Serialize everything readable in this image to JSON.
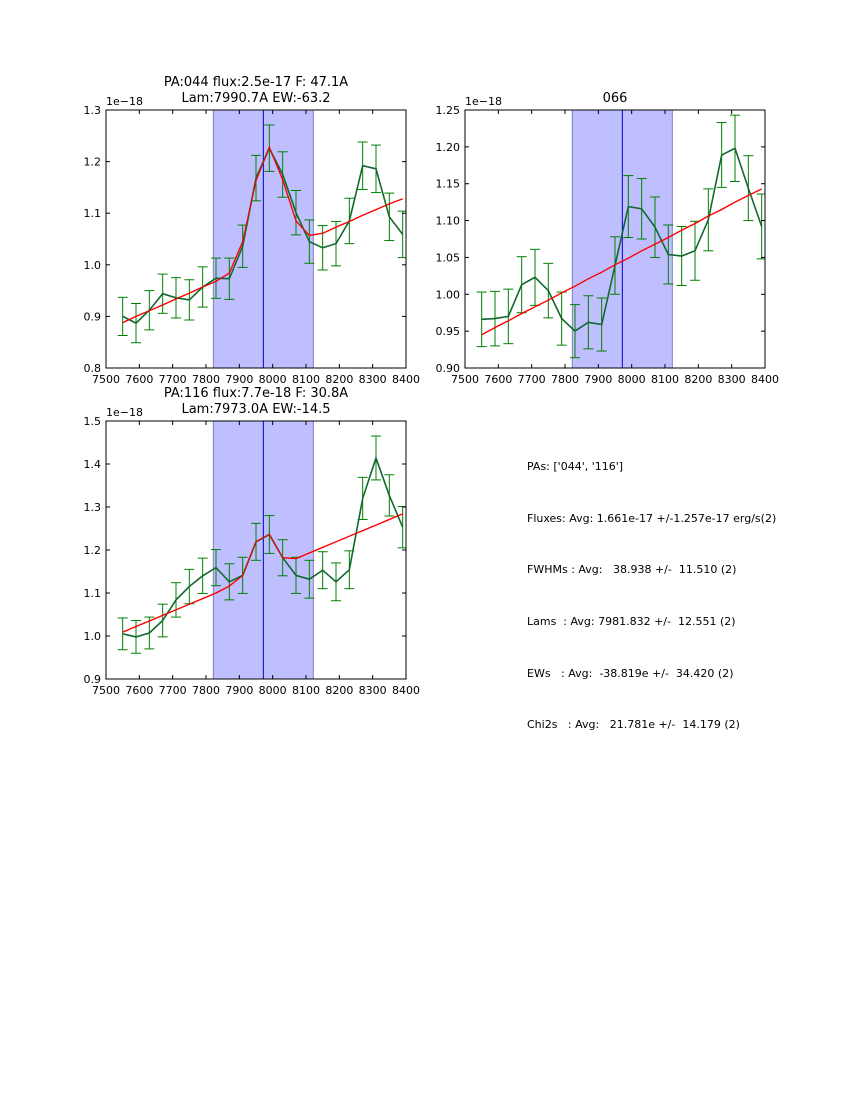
{
  "colors": {
    "data_line": "#11692f",
    "error_bar": "#008000",
    "fit": "#ff0000",
    "span_fill": "#bfbfff",
    "span_edge": "#8080c0",
    "center_line": "#0000cc"
  },
  "chart_data": [
    {
      "type": "line",
      "id": "pa044",
      "title_lines": [
        "PA:044 flux:2.5e-17 F: 47.1A",
        "Lam:7990.7A EW:-63.2"
      ],
      "offset_label": "1e−18",
      "xlim": [
        7500,
        8400
      ],
      "ylim": [
        0.8,
        1.3
      ],
      "xticks": [
        "7500",
        "7600",
        "7700",
        "7800",
        "7900",
        "8000",
        "8100",
        "8200",
        "8300",
        "8400"
      ],
      "yticks": [
        "0.8",
        "0.9",
        "1.0",
        "1.1",
        "1.2",
        "1.3"
      ],
      "shaded_span": [
        7822,
        8122
      ],
      "center_line": 7972,
      "x": [
        7550,
        7590,
        7630,
        7670,
        7710,
        7750,
        7790,
        7830,
        7870,
        7910,
        7950,
        7990,
        8030,
        8070,
        8110,
        8150,
        8190,
        8230,
        8270,
        8310,
        8350,
        8390
      ],
      "series": [
        {
          "name": "data",
          "values": [
            0.9,
            0.887,
            0.912,
            0.944,
            0.936,
            0.932,
            0.957,
            0.974,
            0.973,
            1.036,
            1.168,
            1.226,
            1.175,
            1.101,
            1.045,
            1.033,
            1.041,
            1.085,
            1.192,
            1.186,
            1.093,
            1.059
          ],
          "errors": [
            0.037,
            0.038,
            0.038,
            0.038,
            0.039,
            0.039,
            0.039,
            0.039,
            0.04,
            0.041,
            0.044,
            0.045,
            0.044,
            0.043,
            0.042,
            0.043,
            0.043,
            0.044,
            0.046,
            0.046,
            0.046,
            0.045
          ]
        },
        {
          "name": "fit",
          "values": [
            0.888,
            0.9,
            0.911,
            0.922,
            0.934,
            0.945,
            0.957,
            0.968,
            0.984,
            1.045,
            1.163,
            1.228,
            1.165,
            1.085,
            1.057,
            1.061,
            1.073,
            1.084,
            1.096,
            1.107,
            1.118,
            1.128
          ]
        }
      ]
    },
    {
      "type": "line",
      "id": "pa066",
      "title_lines": [
        "066"
      ],
      "offset_label": "1e−18",
      "xlim": [
        7500,
        8400
      ],
      "ylim": [
        0.9,
        1.25
      ],
      "xticks": [
        "7500",
        "7600",
        "7700",
        "7800",
        "7900",
        "8000",
        "8100",
        "8200",
        "8300",
        "8400"
      ],
      "yticks": [
        "0.90",
        "0.95",
        "1.00",
        "1.05",
        "1.10",
        "1.15",
        "1.20",
        "1.25"
      ],
      "shaded_span": [
        7822,
        8122
      ],
      "center_line": 7972,
      "x": [
        7550,
        7590,
        7630,
        7670,
        7710,
        7750,
        7790,
        7830,
        7870,
        7910,
        7950,
        7990,
        8030,
        8070,
        8110,
        8150,
        8190,
        8230,
        8270,
        8310,
        8350,
        8390
      ],
      "series": [
        {
          "name": "data",
          "values": [
            0.966,
            0.967,
            0.97,
            1.013,
            1.023,
            1.005,
            0.967,
            0.95,
            0.962,
            0.959,
            1.039,
            1.119,
            1.116,
            1.091,
            1.054,
            1.052,
            1.059,
            1.101,
            1.189,
            1.198,
            1.144,
            1.092
          ],
          "errors": [
            0.037,
            0.037,
            0.037,
            0.038,
            0.038,
            0.037,
            0.036,
            0.036,
            0.036,
            0.036,
            0.039,
            0.042,
            0.041,
            0.041,
            0.04,
            0.04,
            0.04,
            0.042,
            0.044,
            0.045,
            0.044,
            0.044
          ]
        },
        {
          "name": "fit",
          "values": [
            0.945,
            0.955,
            0.964,
            0.974,
            0.983,
            0.992,
            1.002,
            1.011,
            1.021,
            1.03,
            1.04,
            1.049,
            1.059,
            1.068,
            1.077,
            1.087,
            1.096,
            1.106,
            1.115,
            1.125,
            1.134,
            1.143
          ]
        }
      ]
    },
    {
      "type": "line",
      "id": "pa116",
      "title_lines": [
        "PA:116 flux:7.7e-18 F: 30.8A",
        "Lam:7973.0A EW:-14.5"
      ],
      "offset_label": "1e−18",
      "xlim": [
        7500,
        8400
      ],
      "ylim": [
        0.9,
        1.5
      ],
      "xticks": [
        "7500",
        "7600",
        "7700",
        "7800",
        "7900",
        "8000",
        "8100",
        "8200",
        "8300",
        "8400"
      ],
      "yticks": [
        "0.9",
        "1.0",
        "1.1",
        "1.2",
        "1.3",
        "1.4",
        "1.5"
      ],
      "shaded_span": [
        7822,
        8122
      ],
      "center_line": 7972,
      "x": [
        7550,
        7590,
        7630,
        7670,
        7710,
        7750,
        7790,
        7830,
        7870,
        7910,
        7950,
        7990,
        8030,
        8070,
        8110,
        8150,
        8190,
        8230,
        8270,
        8310,
        8350,
        8390
      ],
      "series": [
        {
          "name": "data",
          "values": [
            1.005,
            0.998,
            1.007,
            1.036,
            1.084,
            1.115,
            1.14,
            1.159,
            1.126,
            1.141,
            1.219,
            1.236,
            1.182,
            1.141,
            1.132,
            1.153,
            1.126,
            1.154,
            1.32,
            1.414,
            1.327,
            1.253
          ],
          "errors": [
            0.037,
            0.038,
            0.037,
            0.038,
            0.04,
            0.04,
            0.041,
            0.042,
            0.042,
            0.042,
            0.043,
            0.044,
            0.042,
            0.042,
            0.044,
            0.043,
            0.044,
            0.044,
            0.049,
            0.051,
            0.048,
            0.048
          ]
        },
        {
          "name": "fit",
          "values": [
            1.009,
            1.022,
            1.035,
            1.048,
            1.061,
            1.074,
            1.087,
            1.1,
            1.116,
            1.141,
            1.219,
            1.236,
            1.182,
            1.18,
            1.193,
            1.206,
            1.219,
            1.232,
            1.245,
            1.258,
            1.271,
            1.284
          ]
        }
      ]
    }
  ],
  "stats": {
    "lines": [
      "PAs: ['044', '116']",
      "Fluxes: Avg: 1.661e-17 +/-1.257e-17 erg/s(2)",
      "FWHMs : Avg:   38.938 +/-  11.510 (2)",
      "Lams  : Avg: 7981.832 +/-  12.551 (2)",
      "EWs   : Avg:  -38.819e +/-  34.420 (2)",
      "Chi2s   : Avg:   21.781e +/-  14.179 (2)"
    ]
  }
}
